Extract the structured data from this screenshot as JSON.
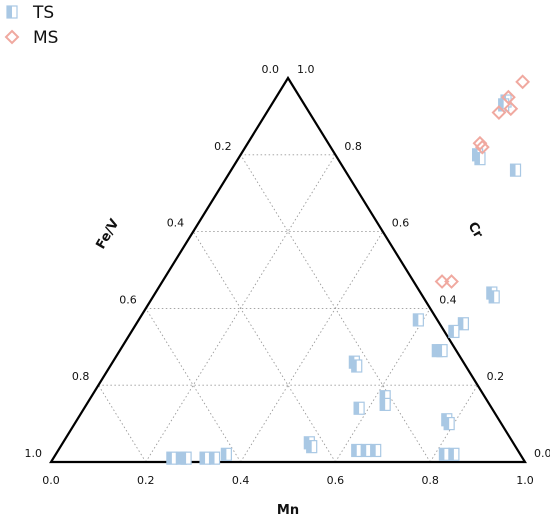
{
  "chart_data": {
    "type": "scatter",
    "subtype": "ternary",
    "title": "",
    "axes": {
      "bottom": {
        "label": "Mn",
        "ticks": [
          "0.0",
          "0.2",
          "0.4",
          "0.6",
          "0.8",
          "1.0"
        ]
      },
      "left": {
        "label": "Fe/V",
        "ticks": [
          "0.0",
          "0.2",
          "0.4",
          "0.6",
          "0.8",
          "1.0"
        ]
      },
      "right": {
        "label": "Cr",
        "ticks": [
          "0.0",
          "0.2",
          "0.4",
          "0.6",
          "0.8",
          "1.0"
        ]
      }
    },
    "grid": true,
    "grid_step": 0.2,
    "legend_position": "top-left",
    "series": [
      {
        "name": "TS",
        "marker": "square",
        "color": "#a9c8e4",
        "points": [
          {
            "Mn": 0.49,
            "Cr": 0.94
          },
          {
            "Mn": 0.49,
            "Cr": 0.93
          },
          {
            "Mn": 0.5,
            "Cr": 0.8
          },
          {
            "Mn": 0.51,
            "Cr": 0.79
          },
          {
            "Mn": 0.6,
            "Cr": 0.76
          },
          {
            "Mn": 0.71,
            "Cr": 0.44
          },
          {
            "Mn": 0.72,
            "Cr": 0.43
          },
          {
            "Mn": 0.59,
            "Cr": 0.37
          },
          {
            "Mn": 0.69,
            "Cr": 0.36
          },
          {
            "Mn": 0.68,
            "Cr": 0.34
          },
          {
            "Mn": 0.67,
            "Cr": 0.29
          },
          {
            "Mn": 0.68,
            "Cr": 0.29
          },
          {
            "Mn": 0.51,
            "Cr": 0.26
          },
          {
            "Mn": 0.52,
            "Cr": 0.25
          },
          {
            "Mn": 0.62,
            "Cr": 0.17
          },
          {
            "Mn": 0.63,
            "Cr": 0.15
          },
          {
            "Mn": 0.58,
            "Cr": 0.14
          },
          {
            "Mn": 0.78,
            "Cr": 0.11
          },
          {
            "Mn": 0.79,
            "Cr": 0.1
          },
          {
            "Mn": 0.52,
            "Cr": 0.05
          },
          {
            "Mn": 0.53,
            "Cr": 0.04
          },
          {
            "Mn": 0.63,
            "Cr": 0.03
          },
          {
            "Mn": 0.65,
            "Cr": 0.03
          },
          {
            "Mn": 0.67,
            "Cr": 0.03
          },
          {
            "Mn": 0.82,
            "Cr": 0.02
          },
          {
            "Mn": 0.84,
            "Cr": 0.02
          },
          {
            "Mn": 0.25,
            "Cr": 0.01
          },
          {
            "Mn": 0.27,
            "Cr": 0.01
          },
          {
            "Mn": 0.28,
            "Cr": 0.01
          },
          {
            "Mn": 0.32,
            "Cr": 0.01
          },
          {
            "Mn": 0.34,
            "Cr": 0.01
          },
          {
            "Mn": 0.36,
            "Cr": 0.02
          }
        ]
      },
      {
        "name": "MS",
        "marker": "diamond",
        "color": "#f0a9a0",
        "points": [
          {
            "Mn": 0.5,
            "Cr": 0.99
          },
          {
            "Mn": 0.49,
            "Cr": 0.95
          },
          {
            "Mn": 0.51,
            "Cr": 0.92
          },
          {
            "Mn": 0.49,
            "Cr": 0.91
          },
          {
            "Mn": 0.49,
            "Cr": 0.83
          },
          {
            "Mn": 0.5,
            "Cr": 0.82
          },
          {
            "Mn": 0.59,
            "Cr": 0.47
          },
          {
            "Mn": 0.61,
            "Cr": 0.47
          }
        ]
      }
    ]
  }
}
